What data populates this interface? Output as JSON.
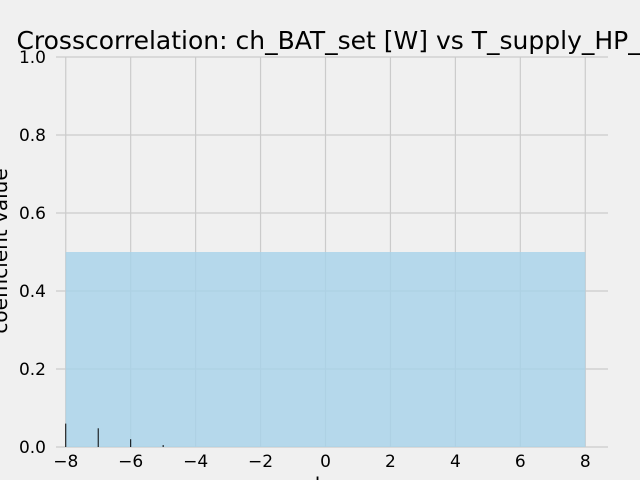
{
  "chart_data": {
    "type": "bar",
    "title": "Crosscorrelation: ch_BAT_set [W] vs T_supply_HP_in",
    "xlabel": "lag",
    "ylabel": "coefficient value",
    "xlim": [
      -8.3,
      8.7
    ],
    "ylim": [
      0,
      1
    ],
    "grid": true,
    "xticks": [
      "−8",
      "−6",
      "−4",
      "−2",
      "0",
      "2",
      "4",
      "6",
      "8"
    ],
    "xtick_values": [
      -8,
      -6,
      -4,
      -2,
      0,
      2,
      4,
      6,
      8
    ],
    "yticks": [
      "0.0",
      "0.2",
      "0.4",
      "0.6",
      "0.8",
      "1.0"
    ],
    "ytick_values": [
      0,
      0.2,
      0.4,
      0.6,
      0.8,
      1.0
    ],
    "confidence_band": {
      "x": [
        -8,
        8
      ],
      "y": [
        0,
        0.5
      ],
      "color": "#a6d2ea"
    },
    "lags": [
      -8,
      -7,
      -6,
      -5
    ],
    "values": [
      0.06,
      0.048,
      0.02,
      0.005
    ],
    "colors": {
      "background": "#f0f0f0",
      "grid": "#cbcbcb",
      "bar": "#000000"
    }
  }
}
